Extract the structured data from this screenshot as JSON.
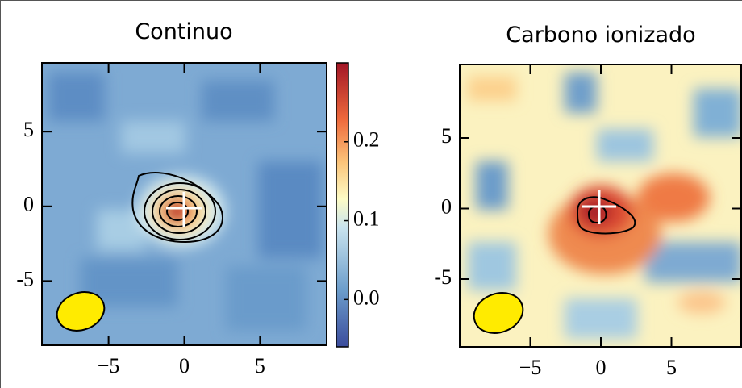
{
  "chart_data": [
    {
      "type": "heatmap",
      "title": "Continuo",
      "xlim": [
        -9.4,
        9.4
      ],
      "ylim": [
        -9.3,
        9.6
      ],
      "xticks": [
        {
          "value": -5,
          "label": "−5"
        },
        0,
        5
      ],
      "yticks": [
        {
          "value": -5,
          "label": "-5"
        },
        0,
        5
      ],
      "colorbar": {
        "lim": [
          -0.06,
          0.3
        ],
        "ticks": [
          {
            "value": 0,
            "label": "0.0"
          },
          0.1,
          0.2
        ]
      }
    },
    {
      "type": "heatmap",
      "title": "Carbono ionizado",
      "xlim": [
        -10,
        10
      ],
      "ylim": [
        -9.8,
        10.2
      ],
      "xticks": [
        {
          "value": -5,
          "label": "−5"
        },
        0,
        5
      ],
      "yticks": [
        {
          "value": -5,
          "label": "-5"
        },
        0,
        5
      ]
    }
  ]
}
